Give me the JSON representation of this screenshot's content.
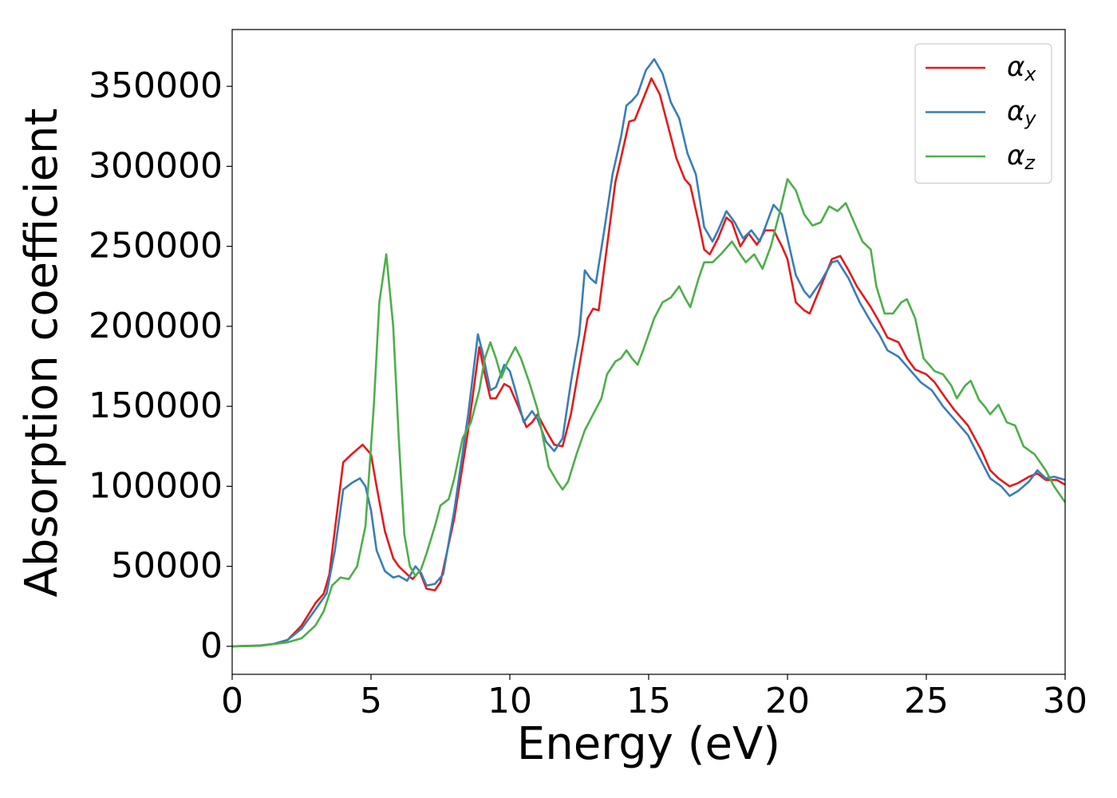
{
  "chart_data": {
    "type": "line",
    "x_label": "Energy (eV)",
    "y_label": "Absorption coefficient",
    "xlim": [
      0,
      30
    ],
    "ylim": [
      -17500,
      385500
    ],
    "xticks": [
      0,
      5,
      10,
      15,
      20,
      25,
      30
    ],
    "yticks": [
      0,
      50000,
      100000,
      150000,
      200000,
      250000,
      300000,
      350000
    ],
    "grid": false,
    "legend": "upper right",
    "series": [
      {
        "name": "αx",
        "color": "#e41a1c",
        "x": [
          0,
          1,
          1.5,
          2,
          2.5,
          3,
          3.3,
          3.5,
          3.75,
          4,
          4.3,
          4.7,
          5,
          5.2,
          5.5,
          5.8,
          6,
          6.3,
          6.5,
          6.75,
          7,
          7.3,
          7.5,
          8,
          8.5,
          8.9,
          9.1,
          9.3,
          9.5,
          9.8,
          10,
          10.3,
          10.6,
          10.8,
          11,
          11.3,
          11.6,
          11.9,
          12.2,
          12.5,
          12.8,
          13,
          13.2,
          13.5,
          13.8,
          14,
          14.3,
          14.5,
          14.8,
          15.1,
          15.4,
          15.7,
          16,
          16.3,
          16.5,
          16.8,
          17,
          17.2,
          17.5,
          17.8,
          18,
          18.3,
          18.6,
          18.9,
          19.2,
          19.5,
          19.8,
          20,
          20.3,
          20.6,
          20.8,
          21.2,
          21.6,
          21.9,
          22.2,
          22.5,
          23,
          23.3,
          23.6,
          24,
          24.3,
          24.6,
          25,
          25.3,
          25.7,
          26,
          26.5,
          27,
          27.3,
          27.6,
          28,
          28.3,
          28.7,
          29,
          29.3,
          29.7,
          30
        ],
        "values": [
          0,
          500,
          1500,
          4000,
          13000,
          27000,
          33000,
          45000,
          80000,
          115000,
          120000,
          126000,
          120000,
          100000,
          72000,
          55000,
          50000,
          45000,
          42000,
          47000,
          36000,
          35000,
          40000,
          80000,
          135000,
          187000,
          170000,
          155000,
          155000,
          164000,
          162000,
          150000,
          137000,
          140000,
          145000,
          135000,
          126000,
          125000,
          145000,
          175000,
          205000,
          211000,
          210000,
          250000,
          290000,
          305000,
          328000,
          329000,
          342000,
          355000,
          345000,
          325000,
          305000,
          292000,
          288000,
          265000,
          248000,
          245000,
          255000,
          268000,
          265000,
          250000,
          258000,
          251000,
          260000,
          260000,
          250000,
          242000,
          215000,
          210000,
          208000,
          225000,
          242000,
          244000,
          235000,
          225000,
          212000,
          203000,
          193000,
          190000,
          180000,
          173000,
          170000,
          165000,
          155000,
          148000,
          138000,
          122000,
          110000,
          105000,
          100000,
          102000,
          106000,
          108000,
          104000,
          104000,
          101000
        ]
      },
      {
        "name": "αy",
        "color": "#377eb8",
        "x": [
          0,
          1,
          1.5,
          2,
          2.5,
          3,
          3.4,
          3.7,
          4,
          4.3,
          4.6,
          4.8,
          5,
          5.2,
          5.5,
          5.8,
          6,
          6.3,
          6.6,
          6.8,
          7,
          7.3,
          7.6,
          8,
          8.5,
          8.85,
          9,
          9.3,
          9.5,
          9.8,
          10,
          10.2,
          10.5,
          10.8,
          11,
          11.3,
          11.6,
          11.9,
          12.2,
          12.5,
          12.7,
          12.9,
          13.1,
          13.4,
          13.7,
          14,
          14.2,
          14.4,
          14.6,
          14.9,
          15.2,
          15.5,
          15.8,
          16.1,
          16.4,
          16.7,
          17,
          17.3,
          17.5,
          17.8,
          18.1,
          18.4,
          18.7,
          19,
          19.2,
          19.5,
          19.8,
          20,
          20.3,
          20.6,
          20.8,
          21.2,
          21.6,
          21.8,
          22.2,
          22.6,
          23,
          23.3,
          23.6,
          24,
          24.4,
          24.8,
          25.2,
          25.6,
          26,
          26.5,
          27,
          27.3,
          27.7,
          28,
          28.3,
          28.7,
          29,
          29.3,
          29.6,
          30
        ],
        "values": [
          0,
          500,
          1500,
          4000,
          11000,
          23000,
          33000,
          60000,
          98000,
          102000,
          105000,
          100000,
          85000,
          60000,
          47000,
          43000,
          44000,
          41000,
          50000,
          46000,
          38000,
          39000,
          45000,
          85000,
          145000,
          195000,
          185000,
          160000,
          162000,
          176000,
          172000,
          160000,
          140000,
          147000,
          142000,
          128000,
          122000,
          130000,
          165000,
          195000,
          235000,
          230000,
          227000,
          260000,
          295000,
          318000,
          338000,
          341000,
          345000,
          360000,
          367000,
          358000,
          340000,
          330000,
          308000,
          295000,
          262000,
          253000,
          260000,
          272000,
          265000,
          255000,
          260000,
          253000,
          262000,
          276000,
          270000,
          255000,
          232000,
          222000,
          218000,
          228000,
          240000,
          241000,
          230000,
          215000,
          203000,
          195000,
          185000,
          181000,
          173000,
          165000,
          160000,
          150000,
          142000,
          132000,
          115000,
          105000,
          100000,
          94000,
          97000,
          103000,
          110000,
          105000,
          106000,
          104000
        ]
      },
      {
        "name": "αz",
        "color": "#4daf4a",
        "x": [
          0,
          1,
          2,
          2.5,
          3,
          3.3,
          3.6,
          3.9,
          4.2,
          4.5,
          4.8,
          5.1,
          5.3,
          5.55,
          5.8,
          6,
          6.2,
          6.4,
          6.6,
          6.8,
          7,
          7.3,
          7.5,
          7.8,
          8,
          8.3,
          8.6,
          8.9,
          9.1,
          9.3,
          9.5,
          9.7,
          9.9,
          10.2,
          10.4,
          10.7,
          11,
          11.2,
          11.4,
          11.7,
          11.9,
          12.1,
          12.4,
          12.7,
          13,
          13.3,
          13.5,
          13.8,
          14,
          14.2,
          14.4,
          14.6,
          14.8,
          15,
          15.2,
          15.5,
          15.8,
          16.1,
          16.3,
          16.5,
          16.8,
          17,
          17.3,
          17.6,
          18,
          18.3,
          18.5,
          18.8,
          19.1,
          19.4,
          19.7,
          20,
          20.3,
          20.6,
          20.9,
          21.2,
          21.5,
          21.8,
          22.1,
          22.4,
          22.7,
          23,
          23.2,
          23.5,
          23.8,
          24.1,
          24.3,
          24.6,
          24.9,
          25.3,
          25.6,
          25.9,
          26.1,
          26.4,
          26.6,
          26.9,
          27.1,
          27.3,
          27.6,
          27.9,
          28.2,
          28.5,
          28.9,
          29.3,
          29.6,
          30
        ],
        "values": [
          0,
          300,
          2500,
          5000,
          13000,
          22000,
          38000,
          43000,
          42000,
          50000,
          75000,
          150000,
          215000,
          245000,
          200000,
          130000,
          70000,
          50000,
          44000,
          48000,
          58000,
          75000,
          88000,
          92000,
          105000,
          130000,
          140000,
          160000,
          180000,
          190000,
          180000,
          168000,
          177000,
          187000,
          180000,
          165000,
          148000,
          130000,
          112000,
          103000,
          98000,
          103000,
          120000,
          135000,
          145000,
          155000,
          170000,
          178000,
          180000,
          185000,
          180000,
          176000,
          185000,
          195000,
          205000,
          215000,
          218000,
          225000,
          218000,
          212000,
          230000,
          240000,
          240000,
          245000,
          253000,
          245000,
          240000,
          245000,
          236000,
          250000,
          270000,
          292000,
          285000,
          270000,
          263000,
          265000,
          275000,
          272000,
          277000,
          265000,
          253000,
          248000,
          225000,
          208000,
          208000,
          215000,
          217000,
          205000,
          180000,
          172000,
          170000,
          163000,
          155000,
          163000,
          166000,
          154000,
          150000,
          145000,
          151000,
          140000,
          138000,
          125000,
          120000,
          110000,
          100000,
          90000
        ]
      }
    ]
  }
}
